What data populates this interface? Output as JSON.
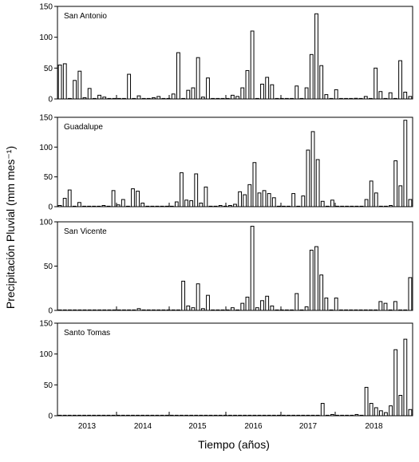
{
  "ylabel": "Precipitación Pluvial (mm mes⁻¹)",
  "xlabel": "Tiempo (años)",
  "years": [
    "2013",
    "2014",
    "2015",
    "2016",
    "2017",
    "2018"
  ],
  "chart_data": [
    {
      "type": "bar",
      "title": "San Antonio",
      "ylim": [
        0,
        150
      ],
      "yticks": [
        0,
        50,
        100,
        150
      ],
      "start": "2013-01",
      "months": 72,
      "values": [
        55,
        57,
        0,
        30,
        45,
        2,
        17,
        0,
        6,
        3,
        0,
        0,
        0,
        0,
        40,
        0,
        5,
        0,
        0,
        2,
        4,
        0,
        0,
        8,
        75,
        0,
        14,
        18,
        67,
        3,
        34,
        0,
        0,
        0,
        0,
        6,
        4,
        18,
        46,
        110,
        0,
        24,
        35,
        23,
        0,
        0,
        0,
        0,
        21,
        0,
        18,
        72,
        138,
        54,
        7,
        0,
        15,
        0,
        0,
        0,
        1,
        0,
        4,
        0,
        50,
        12,
        7,
        0,
        0,
        1,
        0,
        0
      ],
      "tail": [
        0,
        10,
        0,
        62,
        11,
        4
      ]
    },
    {
      "type": "bar",
      "title": "Guadalupe",
      "ylim": [
        0,
        150
      ],
      "yticks": [
        0,
        50,
        100,
        150
      ],
      "start": "2013-01",
      "months": 72,
      "values": [
        2,
        14,
        28,
        0,
        7,
        0,
        0,
        0,
        0,
        2,
        0,
        27,
        3,
        12,
        0,
        30,
        26,
        6,
        0,
        0,
        0,
        0,
        0,
        0,
        8,
        57,
        11,
        10,
        55,
        6,
        33,
        0,
        0,
        2,
        0,
        2,
        4,
        25,
        20,
        37,
        74,
        23,
        27,
        22,
        15,
        0,
        0,
        0,
        22,
        0,
        18,
        95,
        126,
        79,
        9,
        0,
        11,
        0,
        0,
        0,
        0,
        0,
        0,
        12,
        43,
        23,
        0,
        9,
        0,
        0,
        0,
        0
      ],
      "tail": [
        0,
        0,
        2,
        77,
        35,
        145,
        12
      ]
    },
    {
      "type": "bar",
      "title": "San Vicente",
      "ylim": [
        0,
        100
      ],
      "yticks": [
        0,
        50,
        100
      ],
      "start": "2013-01",
      "months": 72,
      "values": [
        0,
        0,
        0,
        0,
        0,
        0,
        0,
        0,
        0,
        0,
        0,
        0,
        0,
        0,
        0,
        0,
        2,
        0,
        0,
        0,
        0,
        0,
        0,
        0,
        0,
        33,
        5,
        3,
        30,
        2,
        17,
        0,
        0,
        0,
        0,
        3,
        0,
        8,
        15,
        95,
        3,
        11,
        16,
        5,
        0,
        0,
        0,
        0,
        19,
        0,
        4,
        68,
        72,
        40,
        14,
        0,
        14,
        0,
        0,
        0,
        0,
        0,
        0,
        0,
        0,
        10,
        0,
        0,
        0,
        0,
        0,
        0
      ],
      "tail": [
        8,
        0,
        10,
        0,
        0,
        37
      ]
    },
    {
      "type": "bar",
      "title": "Santo Tomas",
      "ylim": [
        0,
        150
      ],
      "yticks": [
        0,
        50,
        100,
        150
      ],
      "start": "2013-01",
      "months": 72,
      "values": [
        0,
        0,
        0,
        0,
        0,
        0,
        0,
        0,
        0,
        0,
        0,
        0,
        0,
        0,
        0,
        0,
        0,
        0,
        0,
        0,
        0,
        0,
        0,
        0,
        0,
        0,
        0,
        0,
        0,
        0,
        0,
        0,
        0,
        0,
        0,
        0,
        0,
        0,
        0,
        0,
        0,
        0,
        0,
        0,
        0,
        0,
        0,
        0,
        0,
        0,
        0,
        0,
        0,
        0,
        20,
        0,
        2,
        0,
        0,
        0,
        0,
        2,
        0,
        46,
        20,
        13,
        0,
        0,
        0,
        0,
        0,
        0
      ],
      "tail": [
        8,
        5,
        16,
        107,
        33,
        124,
        10
      ]
    }
  ]
}
